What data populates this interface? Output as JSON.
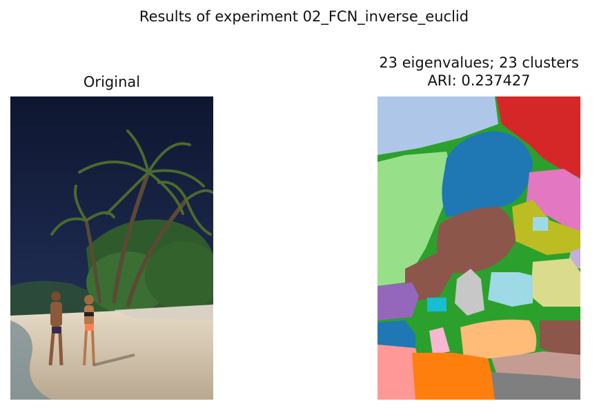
{
  "figure": {
    "suptitle": "Results of experiment 02_FCN_inverse_euclid"
  },
  "left_panel": {
    "title": "Original",
    "image": "photo of a couple walking on a beach with palm trees"
  },
  "right_panel": {
    "title_line1": "23 eigenvalues; 23 clusters",
    "title_line2": "ARI: 0.237427",
    "image": "color-coded segmentation map",
    "palette": [
      "#aec7e8",
      "#d62728",
      "#98df8a",
      "#2ca02c",
      "#1f77b4",
      "#e377c2",
      "#8c564b",
      "#bcbd22",
      "#9edae5",
      "#dbdb8d",
      "#c5b0d5",
      "#9467bd",
      "#17becf",
      "#c7c7c7",
      "#f7b6d2",
      "#ffbb78",
      "#ff9896",
      "#ff7f0e",
      "#c49c94",
      "#7f7f7f"
    ]
  }
}
